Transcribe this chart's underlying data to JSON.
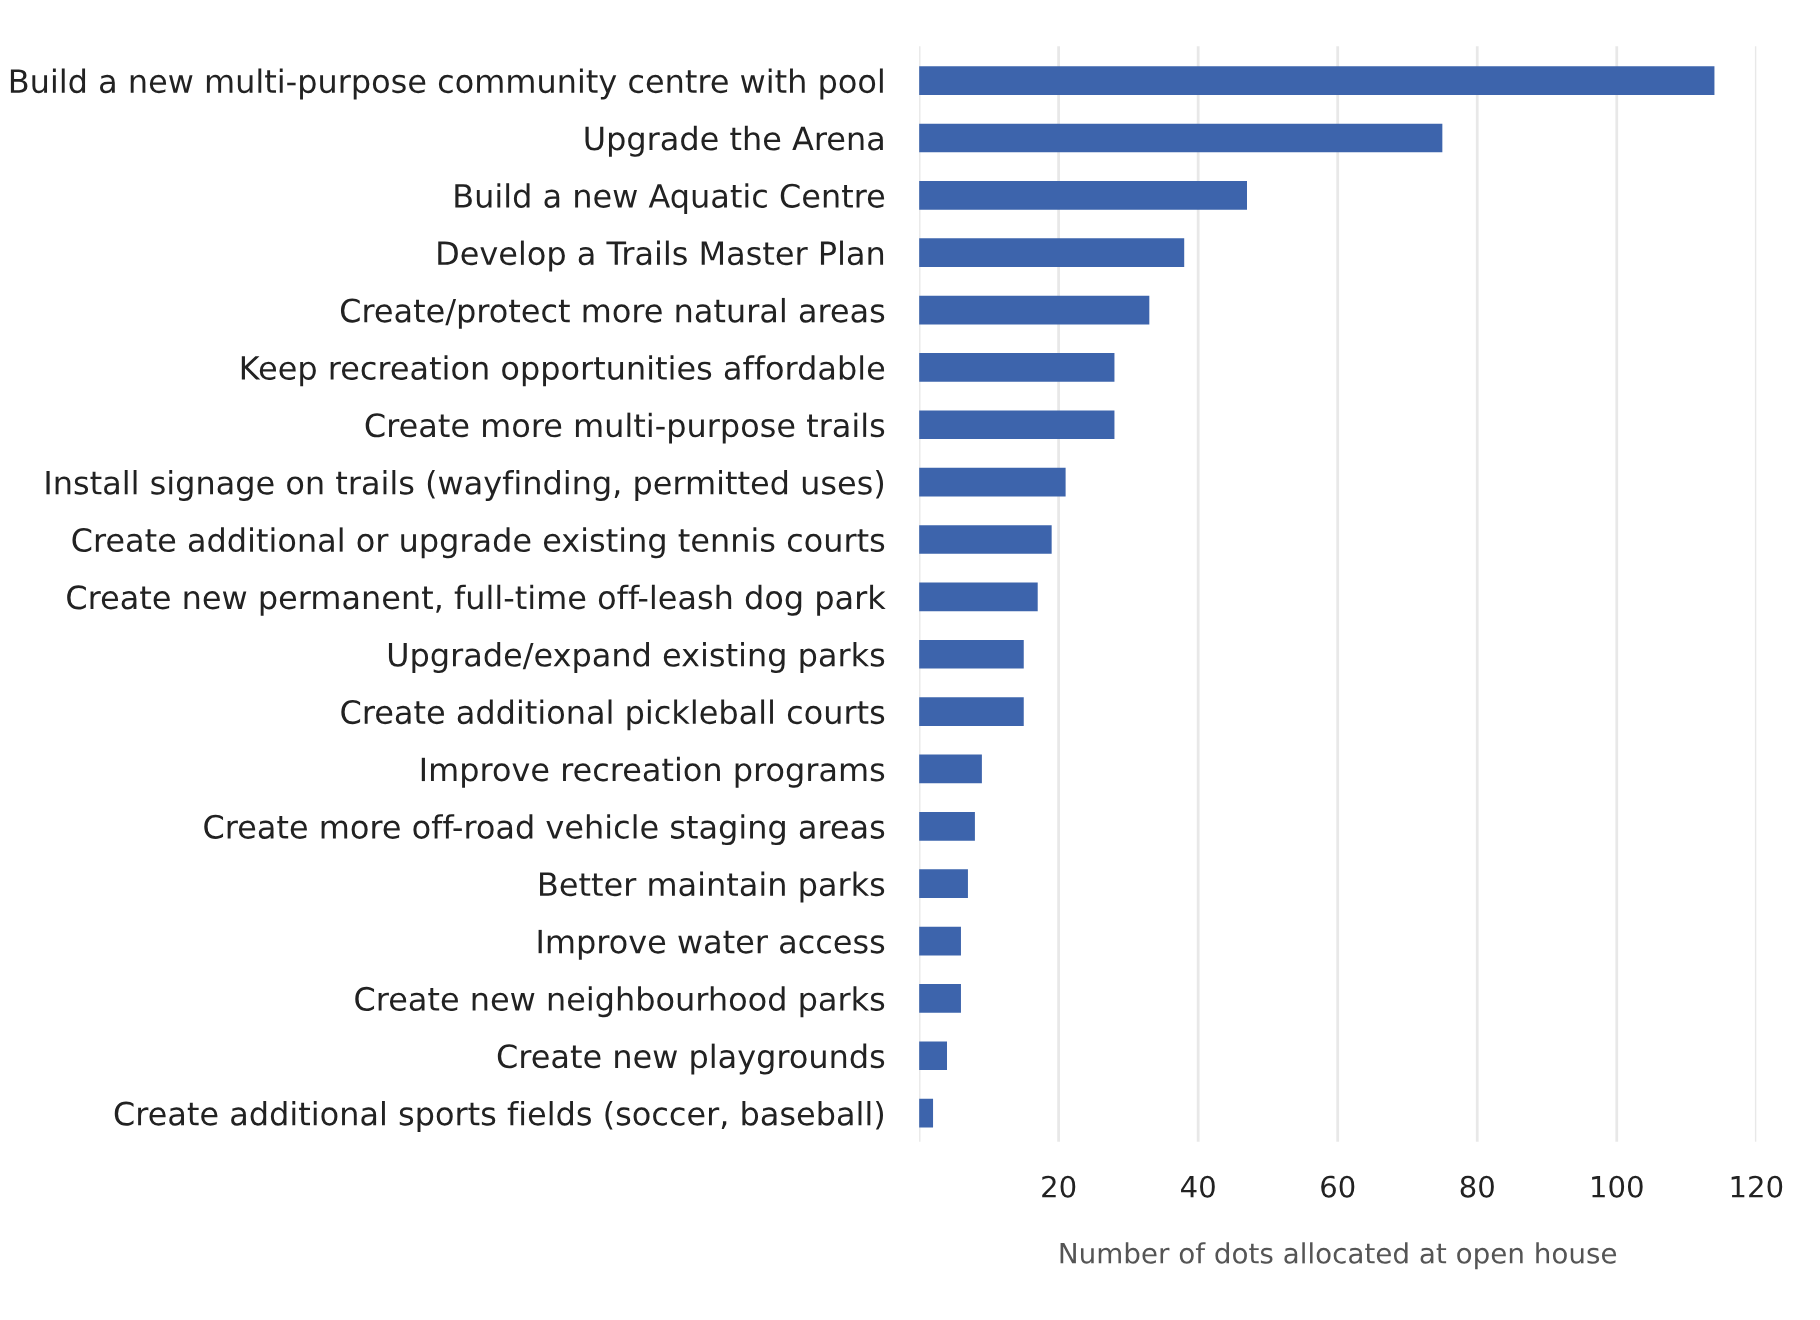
{
  "chart_data": {
    "type": "bar",
    "orientation": "horizontal",
    "xlabel": "Number of dots allocated at open house",
    "categories": [
      "Build a new multi-purpose community centre with pool",
      "Upgrade the Arena",
      "Build a new Aquatic Centre",
      "Develop a Trails Master Plan",
      "Create/protect more natural areas",
      "Keep recreation opportunities affordable",
      "Create more multi-purpose trails",
      "Install signage on trails (wayfinding, permitted uses)",
      "Create additional or upgrade existing tennis courts",
      "Create new permanent, full-time off-leash dog park",
      "Upgrade/expand existing parks",
      "Create additional pickleball courts",
      "Improve recreation programs",
      "Create more off-road vehicle staging areas",
      "Better maintain parks",
      "Improve water access",
      "Create new neighbourhood parks",
      "Create new playgrounds",
      "Create additional sports fields (soccer, baseball)"
    ],
    "values": [
      114,
      75,
      47,
      38,
      33,
      28,
      28,
      21,
      19,
      17,
      15,
      15,
      9,
      8,
      7,
      6,
      6,
      4,
      2
    ],
    "color": "#3d64ac",
    "xlim": [
      0,
      120
    ],
    "xticks": [
      {
        "value": 0,
        "label": null
      },
      20,
      40,
      60,
      80,
      100,
      120
    ],
    "grid": "x"
  }
}
